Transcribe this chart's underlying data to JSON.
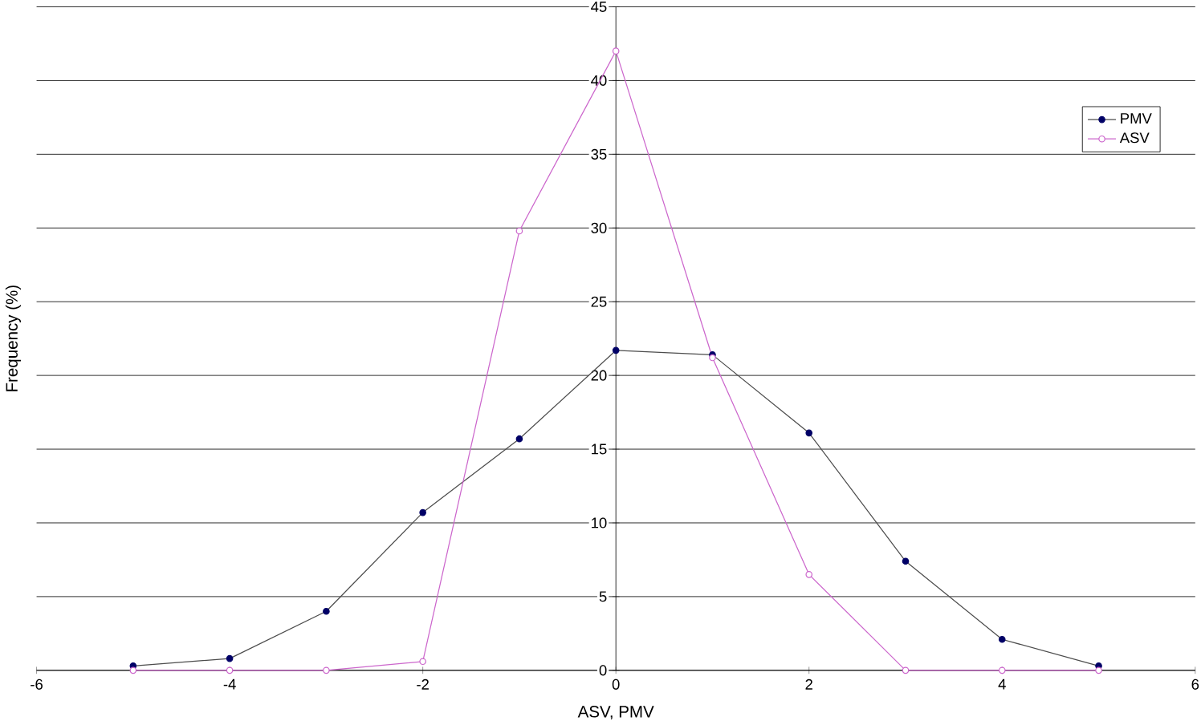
{
  "chart_data": {
    "type": "line",
    "xlabel": "ASV, PMV",
    "ylabel": "Frequency (%)",
    "xlim": [
      -6,
      6
    ],
    "xticks": [
      -6,
      -4,
      -2,
      0,
      2,
      4,
      6
    ],
    "ylim": [
      0,
      45
    ],
    "yticks": [
      0,
      5,
      10,
      15,
      20,
      25,
      30,
      35,
      40,
      45
    ],
    "grid": "y",
    "legend": "top right",
    "marker": "circle",
    "x": [
      -5,
      -4,
      -3,
      -2,
      -1,
      0,
      1,
      2,
      3,
      4,
      5
    ],
    "series": [
      {
        "name": "PMV",
        "color": "#000066",
        "values": [
          0.3,
          0.8,
          4,
          10.7,
          15.7,
          21.7,
          21.4,
          16.1,
          7.4,
          2.1,
          0.3
        ]
      },
      {
        "name": "ASV",
        "color": "#cc66cc",
        "values": [
          0,
          0,
          0,
          0.6,
          29.8,
          42,
          21.2,
          6.5,
          0,
          0,
          0
        ]
      }
    ]
  }
}
